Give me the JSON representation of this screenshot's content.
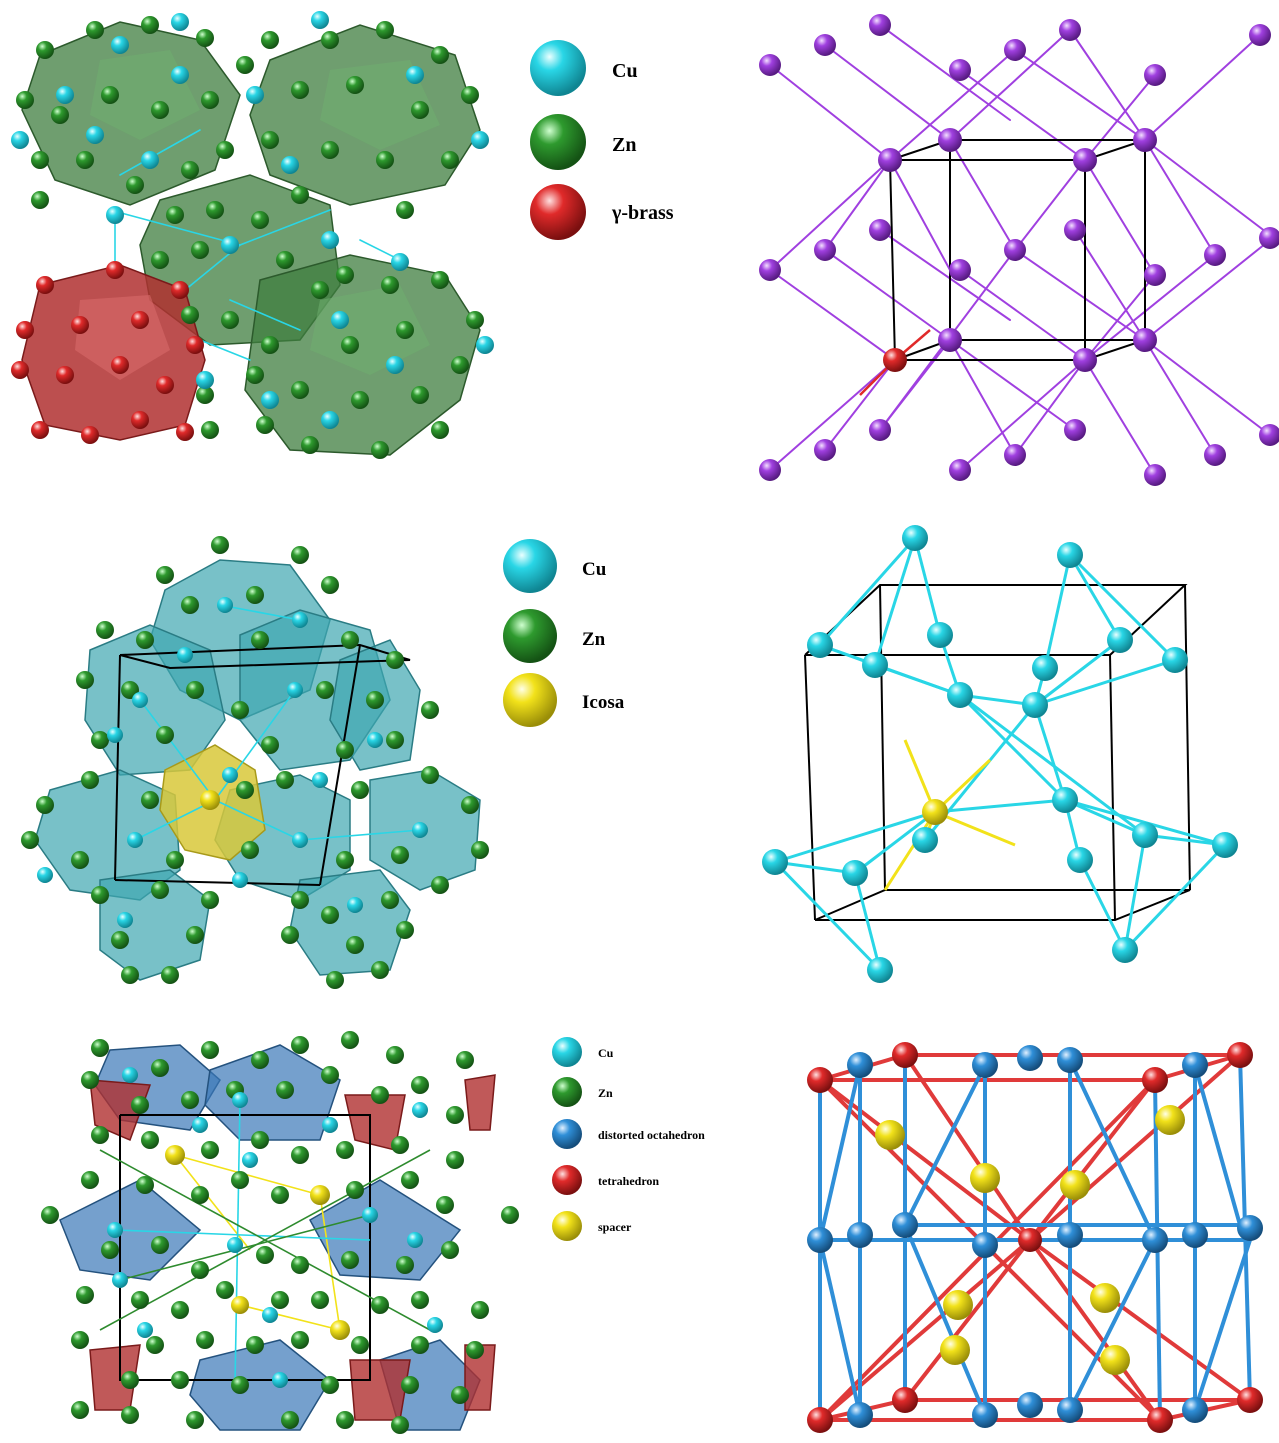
{
  "colors": {
    "cu": "#29d6e6",
    "zn": "#2e8b2e",
    "gamma_brass": "#e02a2a",
    "icosa": "#f2e21a",
    "distorted_octahedron": "#2f8fd8",
    "tetrahedron": "#e03a3a",
    "spacer": "#f2e21a",
    "node_purple": "#a040e0",
    "node_cyan": "#29d6e6",
    "node_blue": "#2f8fd8",
    "node_red": "#e02a2a",
    "poly_green": "#3f7d3f",
    "poly_red": "#b03030",
    "poly_teal": "#3fa7b0",
    "poly_blue": "#3b78b8",
    "cell_edge": "#000000"
  },
  "panels": {
    "top_left": {
      "legend": [
        {
          "label": "Cu",
          "color_key": "cu"
        },
        {
          "label": "Zn",
          "color_key": "zn"
        },
        {
          "label": "γ-brass",
          "color_key": "gamma_brass"
        }
      ]
    },
    "middle_left": {
      "legend": [
        {
          "label": "Cu",
          "color_key": "cu"
        },
        {
          "label": "Zn",
          "color_key": "zn"
        },
        {
          "label": "Icosa",
          "color_key": "icosa"
        }
      ]
    },
    "bottom_left": {
      "legend": [
        {
          "label": "Cu",
          "color_key": "cu"
        },
        {
          "label": "Zn",
          "color_key": "zn"
        },
        {
          "label": "distorted octahedron",
          "color_key": "distorted_octahedron"
        },
        {
          "label": "tetrahedron",
          "color_key": "tetrahedron"
        },
        {
          "label": "spacer",
          "color_key": "spacer"
        }
      ]
    }
  }
}
